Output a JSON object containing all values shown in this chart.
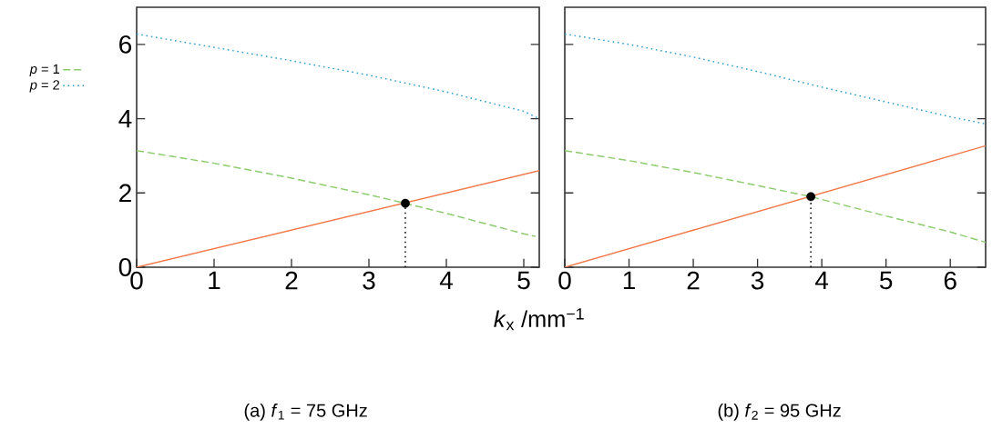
{
  "chart_data": [
    {
      "type": "line",
      "title": "(a) *f*$_{1}$ = 75 GHz",
      "xlabel": "*k*$_{x}$ /mm$^{−1}$",
      "xlim": [
        0,
        5.2
      ],
      "ylim": [
        0,
        7
      ],
      "xticks": [
        0,
        1,
        2,
        3,
        4,
        5
      ],
      "yticks": [
        0,
        2,
        4,
        6
      ],
      "legend": "left",
      "series": [
        {
          "name": "*p* = 1",
          "color": "#8ccc6e",
          "line_style": "dashed",
          "x": [
            0,
            1,
            2,
            3,
            3.47,
            4,
            5,
            5.15
          ],
          "values": [
            3.14,
            2.8,
            2.4,
            1.95,
            1.72,
            1.45,
            0.9,
            0.83
          ]
        },
        {
          "name": "*p* = 2",
          "color": "#2a9fd0",
          "line_style": "dotted",
          "x": [
            0,
            1,
            2,
            3,
            4,
            5,
            5.2
          ],
          "values": [
            6.28,
            5.92,
            5.56,
            5.17,
            4.72,
            4.2,
            4.0
          ]
        },
        {
          "color": "#f07a4a",
          "line_style": "solid",
          "x": [
            0,
            5.2
          ],
          "values": [
            0,
            2.6
          ]
        },
        {
          "color": "#000000",
          "line_style": "dotted",
          "x": [
            3.47,
            3.47
          ],
          "values": [
            0,
            1.72
          ]
        },
        {
          "type": "scatter",
          "marker": "circle",
          "color": "#000000",
          "x": [
            3.47
          ],
          "values": [
            1.72
          ]
        }
      ]
    },
    {
      "type": "line",
      "title": "(b) *f*$_{2}$ = 95 GHz",
      "xlim": [
        0,
        6.55
      ],
      "ylim": [
        0,
        7
      ],
      "xticks": [
        0,
        1,
        2,
        3,
        4,
        5,
        6
      ],
      "yticks": [
        0,
        2,
        4,
        6
      ],
      "tick_labels": "x",
      "series": [
        {
          "color": "#8ccc6e",
          "line_style": "dashed",
          "x": [
            0,
            1,
            2,
            3,
            3.83,
            5,
            6,
            6.55
          ],
          "values": [
            3.14,
            2.87,
            2.55,
            2.2,
            1.9,
            1.38,
            0.95,
            0.67
          ]
        },
        {
          "color": "#2a9fd0",
          "line_style": "dotted",
          "x": [
            0,
            1,
            2,
            3,
            4,
            5,
            6,
            6.55
          ],
          "values": [
            6.28,
            6.0,
            5.66,
            5.27,
            4.85,
            4.45,
            4.05,
            3.86
          ]
        },
        {
          "color": "#f07a4a",
          "line_style": "solid",
          "x": [
            0,
            6.55
          ],
          "values": [
            0,
            3.27
          ]
        },
        {
          "color": "#000000",
          "line_style": "dotted",
          "x": [
            3.83,
            3.83
          ],
          "values": [
            0,
            1.9
          ]
        },
        {
          "type": "scatter",
          "marker": "circle",
          "color": "#000000",
          "x": [
            3.83
          ],
          "values": [
            1.9
          ]
        }
      ]
    }
  ]
}
